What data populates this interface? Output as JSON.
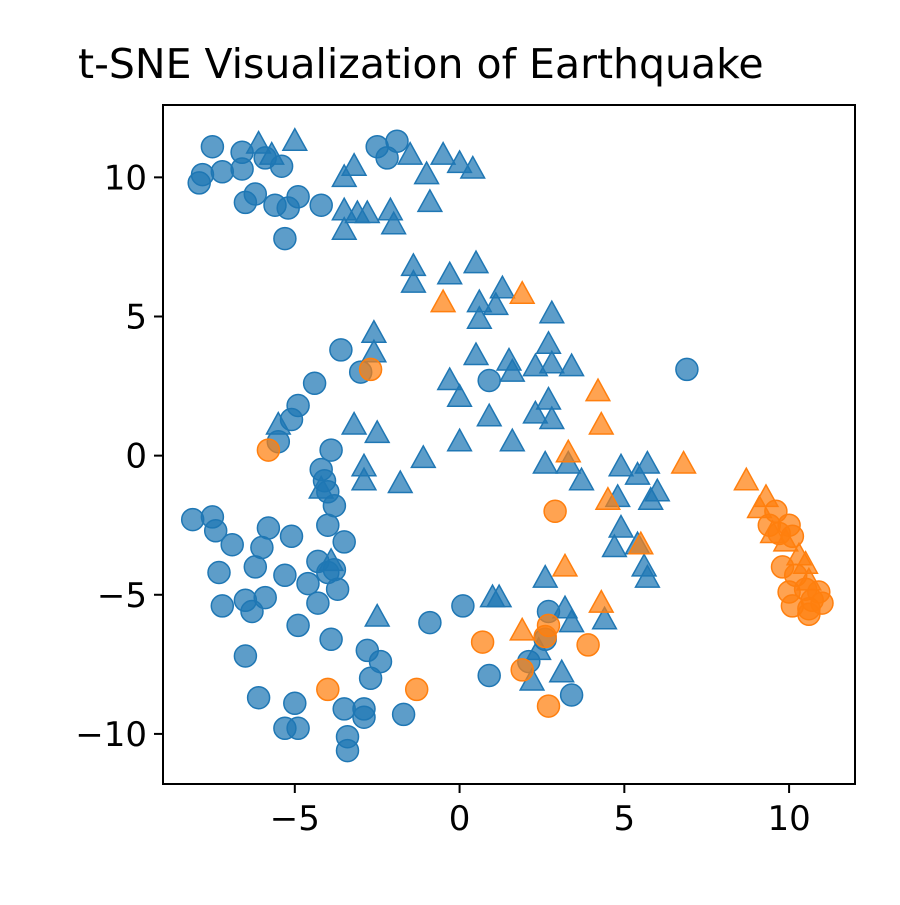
{
  "chart_data": {
    "type": "scatter",
    "title": "t-SNE Visualization of Earthquake",
    "xlim": [
      -9,
      12
    ],
    "ylim": [
      -11.8,
      12.6
    ],
    "x_ticks": [
      -5,
      0,
      5,
      10
    ],
    "y_ticks": [
      10,
      5,
      0,
      -5,
      -10
    ],
    "x_tick_labels": [
      "−5",
      "0",
      "5",
      "10"
    ],
    "y_tick_labels": [
      "10",
      "5",
      "0",
      "−5",
      "−10"
    ],
    "grid": false,
    "colors": {
      "blue": "#1f77b4",
      "orange": "#ff7f0e"
    },
    "series": [
      {
        "color": "#1f77b4",
        "marker": "circle",
        "points": [
          [
            -7.9,
            9.8
          ],
          [
            -7.8,
            10.1
          ],
          [
            -7.5,
            11.1
          ],
          [
            -7.2,
            10.2
          ],
          [
            -6.6,
            10.9
          ],
          [
            -6.6,
            10.3
          ],
          [
            -6.5,
            9.1
          ],
          [
            -6.2,
            9.4
          ],
          [
            -5.9,
            10.7
          ],
          [
            -5.6,
            9.0
          ],
          [
            -5.4,
            10.4
          ],
          [
            -5.2,
            8.9
          ],
          [
            -5.3,
            7.8
          ],
          [
            -4.9,
            9.3
          ],
          [
            -4.2,
            9.0
          ],
          [
            -2.5,
            11.1
          ],
          [
            -2.2,
            10.7
          ],
          [
            -1.9,
            11.3
          ],
          [
            -3.6,
            3.8
          ],
          [
            -3.0,
            3.0
          ],
          [
            -4.4,
            2.6
          ],
          [
            -4.9,
            1.8
          ],
          [
            -5.1,
            1.3
          ],
          [
            -5.5,
            0.5
          ],
          [
            -3.9,
            0.2
          ],
          [
            -4.2,
            -0.5
          ],
          [
            -4.1,
            -0.9
          ],
          [
            -4.0,
            -1.3
          ],
          [
            -3.8,
            -1.8
          ],
          [
            -4.0,
            -2.5
          ],
          [
            -3.5,
            -3.1
          ],
          [
            -3.8,
            -4.1
          ],
          [
            -8.1,
            -2.3
          ],
          [
            -7.5,
            -2.2
          ],
          [
            -7.4,
            -2.7
          ],
          [
            -6.9,
            -3.2
          ],
          [
            -6.0,
            -3.3
          ],
          [
            -5.8,
            -2.6
          ],
          [
            -5.1,
            -2.9
          ],
          [
            -7.3,
            -4.2
          ],
          [
            -7.2,
            -5.4
          ],
          [
            -6.5,
            -5.2
          ],
          [
            -6.3,
            -5.6
          ],
          [
            -6.2,
            -4.0
          ],
          [
            -5.9,
            -5.1
          ],
          [
            -5.3,
            -4.3
          ],
          [
            -4.9,
            -6.1
          ],
          [
            -4.6,
            -4.6
          ],
          [
            -4.3,
            -3.8
          ],
          [
            -4.0,
            -4.2
          ],
          [
            -4.3,
            -5.3
          ],
          [
            -3.7,
            -4.8
          ],
          [
            -3.9,
            -6.6
          ],
          [
            -6.5,
            -7.2
          ],
          [
            -6.1,
            -8.7
          ],
          [
            -5.0,
            -8.9
          ],
          [
            -5.3,
            -9.8
          ],
          [
            -4.9,
            -9.8
          ],
          [
            -3.5,
            -9.1
          ],
          [
            -3.4,
            -10.1
          ],
          [
            -3.4,
            -10.6
          ],
          [
            -2.9,
            -9.1
          ],
          [
            -2.9,
            -9.4
          ],
          [
            -2.8,
            -7.0
          ],
          [
            -2.7,
            -8.0
          ],
          [
            -2.4,
            -7.4
          ],
          [
            -1.7,
            -9.3
          ],
          [
            -0.9,
            -6.0
          ],
          [
            0.1,
            -5.4
          ],
          [
            0.9,
            2.7
          ],
          [
            0.9,
            -7.9
          ],
          [
            2.1,
            -7.4
          ],
          [
            2.7,
            -5.6
          ],
          [
            2.6,
            -6.6
          ],
          [
            3.4,
            -8.6
          ],
          [
            6.9,
            3.1
          ]
        ]
      },
      {
        "color": "#1f77b4",
        "marker": "triangle",
        "points": [
          [
            -6.1,
            11.2
          ],
          [
            -5.7,
            10.8
          ],
          [
            -5.0,
            11.3
          ],
          [
            -3.2,
            10.4
          ],
          [
            -3.5,
            10.0
          ],
          [
            -3.5,
            8.8
          ],
          [
            -3.1,
            8.7
          ],
          [
            -2.8,
            8.7
          ],
          [
            -3.5,
            8.1
          ],
          [
            -2.1,
            8.8
          ],
          [
            -2.0,
            8.3
          ],
          [
            -1.5,
            10.8
          ],
          [
            -1.0,
            10.1
          ],
          [
            -0.9,
            9.1
          ],
          [
            -0.5,
            10.8
          ],
          [
            0.0,
            10.5
          ],
          [
            0.4,
            10.3
          ],
          [
            -1.4,
            6.8
          ],
          [
            -1.4,
            6.2
          ],
          [
            -0.3,
            6.5
          ],
          [
            0.5,
            6.9
          ],
          [
            0.6,
            5.5
          ],
          [
            0.6,
            4.9
          ],
          [
            1.1,
            5.4
          ],
          [
            1.3,
            6.0
          ],
          [
            2.8,
            5.1
          ],
          [
            0.5,
            3.6
          ],
          [
            1.5,
            3.4
          ],
          [
            1.6,
            3.0
          ],
          [
            2.3,
            3.2
          ],
          [
            2.7,
            4.0
          ],
          [
            2.8,
            3.3
          ],
          [
            3.4,
            3.2
          ],
          [
            -2.6,
            4.4
          ],
          [
            -2.6,
            3.7
          ],
          [
            -0.3,
            2.7
          ],
          [
            0.0,
            2.1
          ],
          [
            0.9,
            1.4
          ],
          [
            2.3,
            1.5
          ],
          [
            2.7,
            2.0
          ],
          [
            2.8,
            1.3
          ],
          [
            -3.2,
            1.1
          ],
          [
            -2.5,
            0.8
          ],
          [
            -1.1,
            -0.1
          ],
          [
            0.0,
            0.5
          ],
          [
            1.6,
            0.5
          ],
          [
            -5.5,
            1.1
          ],
          [
            -4.2,
            -1.2
          ],
          [
            -2.9,
            -0.4
          ],
          [
            -2.9,
            -0.9
          ],
          [
            -1.8,
            -1.0
          ],
          [
            -3.9,
            -3.8
          ],
          [
            2.6,
            -0.3
          ],
          [
            3.3,
            -0.3
          ],
          [
            3.7,
            -0.9
          ],
          [
            4.8,
            -1.5
          ],
          [
            4.7,
            -3.3
          ],
          [
            4.9,
            -2.6
          ],
          [
            5.4,
            -3.2
          ],
          [
            4.9,
            -0.4
          ],
          [
            5.4,
            -0.7
          ],
          [
            5.7,
            -0.3
          ],
          [
            5.8,
            -1.6
          ],
          [
            6.0,
            -1.3
          ],
          [
            5.6,
            -4.0
          ],
          [
            5.7,
            -4.4
          ],
          [
            1.0,
            -5.1
          ],
          [
            1.2,
            -5.1
          ],
          [
            2.6,
            -4.4
          ],
          [
            3.2,
            -5.5
          ],
          [
            3.4,
            -6.0
          ],
          [
            4.4,
            -5.9
          ],
          [
            2.4,
            -7.0
          ],
          [
            3.1,
            -7.8
          ],
          [
            2.2,
            -8.1
          ],
          [
            -2.5,
            -5.8
          ]
        ]
      },
      {
        "color": "#ff7f0e",
        "marker": "circle",
        "points": [
          [
            -5.8,
            0.2
          ],
          [
            -2.7,
            3.1
          ],
          [
            2.9,
            -2.0
          ],
          [
            0.7,
            -6.7
          ],
          [
            1.9,
            -7.7
          ],
          [
            2.6,
            -6.5
          ],
          [
            2.7,
            -6.1
          ],
          [
            3.9,
            -6.8
          ],
          [
            2.7,
            -9.0
          ],
          [
            -4.0,
            -8.4
          ],
          [
            -1.3,
            -8.4
          ],
          [
            9.6,
            -2.0
          ],
          [
            9.4,
            -2.5
          ],
          [
            9.7,
            -2.8
          ],
          [
            10.0,
            -2.5
          ],
          [
            10.1,
            -2.9
          ],
          [
            9.8,
            -4.0
          ],
          [
            10.2,
            -4.3
          ],
          [
            10.0,
            -4.9
          ],
          [
            10.5,
            -4.8
          ],
          [
            10.7,
            -5.2
          ],
          [
            10.9,
            -4.9
          ],
          [
            10.1,
            -5.4
          ],
          [
            10.6,
            -5.5
          ],
          [
            11.0,
            -5.3
          ],
          [
            10.6,
            -5.7
          ]
        ]
      },
      {
        "color": "#ff7f0e",
        "marker": "triangle",
        "points": [
          [
            -0.5,
            5.5
          ],
          [
            1.9,
            5.8
          ],
          [
            4.2,
            2.3
          ],
          [
            4.3,
            1.1
          ],
          [
            3.3,
            0.1
          ],
          [
            4.5,
            -1.6
          ],
          [
            5.5,
            -3.2
          ],
          [
            6.8,
            -0.3
          ],
          [
            3.2,
            -4.0
          ],
          [
            4.3,
            -5.3
          ],
          [
            1.9,
            -6.3
          ],
          [
            8.7,
            -0.9
          ],
          [
            9.1,
            -1.9
          ],
          [
            9.3,
            -1.5
          ],
          [
            9.5,
            -2.8
          ],
          [
            9.9,
            -3.1
          ],
          [
            10.3,
            -3.6
          ],
          [
            10.5,
            -3.9
          ],
          [
            10.6,
            -4.5
          ]
        ]
      }
    ]
  }
}
